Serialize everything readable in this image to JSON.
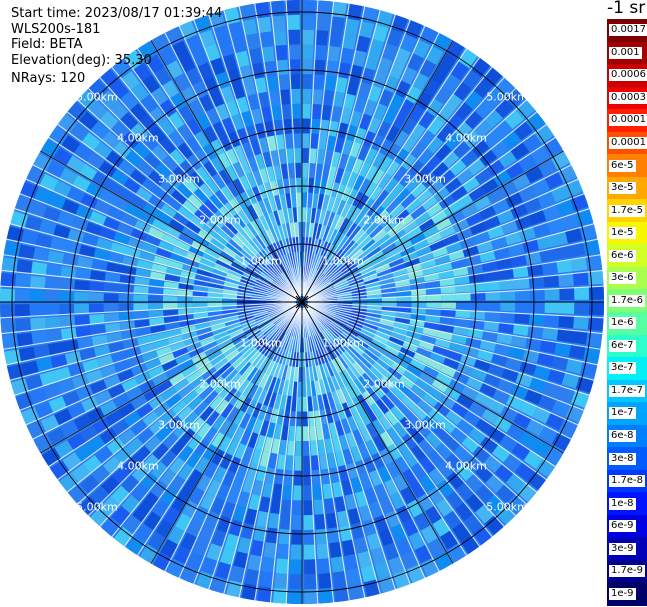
{
  "header": {
    "start_time": "Start time: 2023/08/17 01:39:44",
    "instrument": "WLS200s-181",
    "field": "Field: BETA",
    "elevation": "Elevation(deg): 35.30",
    "nrays": "NRays: 120"
  },
  "colorbar": {
    "unit_label": "-1 sr",
    "levels": [
      {
        "label": "0.0017",
        "color": "#7f0000"
      },
      {
        "label": "0.001",
        "color": "#a30000"
      },
      {
        "label": "0.0006",
        "color": "#c80000"
      },
      {
        "label": "0.0003",
        "color": "#ee0000"
      },
      {
        "label": "0.00017",
        "color": "#ff2000"
      },
      {
        "label": "0.0001",
        "color": "#ff5000"
      },
      {
        "label": "6e-5",
        "color": "#ff7f00"
      },
      {
        "label": "3e-5",
        "color": "#ffa800"
      },
      {
        "label": "1.7e-5",
        "color": "#ffd300"
      },
      {
        "label": "1e-5",
        "color": "#f8f500"
      },
      {
        "label": "6e-6",
        "color": "#d2ff24"
      },
      {
        "label": "3e-6",
        "color": "#a8ff4e"
      },
      {
        "label": "1.7e-6",
        "color": "#7fff78"
      },
      {
        "label": "1e-6",
        "color": "#55ffa2"
      },
      {
        "label": "6e-7",
        "color": "#2bffcc"
      },
      {
        "label": "3e-7",
        "color": "#00f0f6"
      },
      {
        "label": "1.7e-7",
        "color": "#00c8ff"
      },
      {
        "label": "1e-7",
        "color": "#00a4ff"
      },
      {
        "label": "6e-8",
        "color": "#0080ff"
      },
      {
        "label": "3e-8",
        "color": "#005cff"
      },
      {
        "label": "1.7e-8",
        "color": "#0038ff"
      },
      {
        "label": "1e-8",
        "color": "#0014ff"
      },
      {
        "label": "6e-9",
        "color": "#0000e4"
      },
      {
        "label": "3e-9",
        "color": "#0000b6"
      },
      {
        "label": "1.7e-9",
        "color": "#000090"
      },
      {
        "label": "1e-9",
        "color": "#000066"
      }
    ]
  },
  "range_rings": {
    "labels": [
      "1.00km",
      "2.00km",
      "3.00km",
      "4.00km",
      "5.00km"
    ],
    "ring_count": 5,
    "spoke_count": 12
  }
}
